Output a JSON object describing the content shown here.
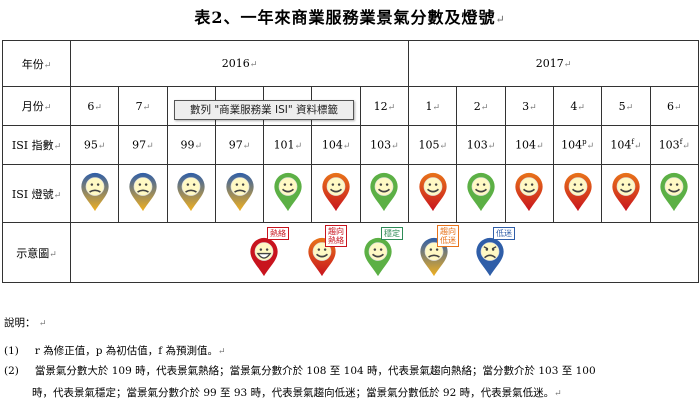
{
  "title": "表2、一年來商業服務業景氣分數及燈號",
  "title_mark": "↵",
  "cell_mark": "↵",
  "tooltip": "數列 \"商業服務業 ISI\" 資料標籤",
  "row_labels": {
    "year": "年份",
    "month": "月份",
    "score": "ISI 指數",
    "light": "ISI 燈號",
    "legend": "示意圖"
  },
  "years": [
    "2016",
    "2017"
  ],
  "months": [
    "6",
    "7",
    "8",
    "9",
    "10",
    "11",
    "12",
    "1",
    "2",
    "3",
    "4",
    "5",
    "6"
  ],
  "scores": [
    "95",
    "97",
    "99",
    "97",
    "101",
    "104",
    "103",
    "105",
    "103",
    "104",
    "104",
    "104",
    "103"
  ],
  "score_sup": [
    "",
    "",
    "",
    "",
    "",
    "",
    "",
    "",
    "",
    "",
    "p",
    "f",
    "f"
  ],
  "lights": [
    "blue-yellow",
    "blue-yellow",
    "blue-yellow",
    "blue-yellow",
    "green",
    "yellow-red",
    "green",
    "yellow-red",
    "green",
    "yellow-red",
    "yellow-red",
    "yellow-red",
    "green"
  ],
  "light_colors": {
    "red": "#c8141e",
    "yellow-red": "#e8731a",
    "green": "#5cb045",
    "blue-yellow": "#f0b020",
    "blue": "#2f5ea8"
  },
  "legend": [
    {
      "key": "red",
      "label_line1": "熱絡",
      "label_line2": "",
      "tag_color": "#c8141e"
    },
    {
      "key": "yellow-red",
      "label_line1": "趨向",
      "label_line2": "熱絡",
      "tag_color": "#c8141e"
    },
    {
      "key": "green",
      "label_line1": "穩定",
      "label_line2": "",
      "tag_color": "#2e8b57"
    },
    {
      "key": "blue-yellow",
      "label_line1": "趨向",
      "label_line2": "低迷",
      "tag_color": "#e8731a"
    },
    {
      "key": "blue",
      "label_line1": "低迷",
      "label_line2": "",
      "tag_color": "#2f5ea8"
    }
  ],
  "notes": {
    "heading": "說明：",
    "n1_num": "(1)",
    "n1": "r 為修正值，p 為初估值，f 為預測值。",
    "n2_num": "(2)",
    "n2_line1": "當景氣分數大於 109 時，代表景氣熱絡；當景氣分數介於 108 至 104 時，代表景氣趨向熱絡；當分數介於 103 至 100",
    "n2_line2": "時，代表景氣穩定；當景氣分數介於 99 至 93 時，代表景氣趨向低迷；當景氣分數低於 92 時，代表景氣低迷。"
  }
}
